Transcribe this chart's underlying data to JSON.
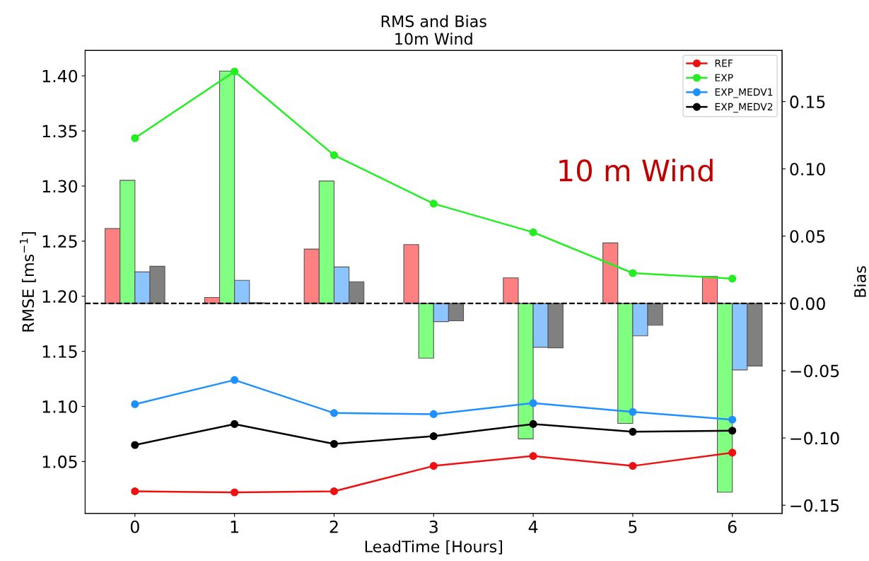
{
  "chart_data": {
    "type": "line",
    "title": "RMS and Bias\n10m Wind",
    "xlabel": "LeadTime [Hours]",
    "ylabel": "RMSE [ms$^{−1}$]",
    "y2label": "Bias",
    "categories": [
      "0",
      "1",
      "2",
      "3",
      "4",
      "5",
      "6"
    ],
    "ylim": [
      1.003,
      1.423
    ],
    "yticks": [
      1.05,
      {
        "value": 1.1,
        "label": "1.10"
      },
      1.15,
      {
        "value": 1.2,
        "label": "1.20"
      },
      1.25,
      {
        "value": 1.3,
        "label": "1.30"
      },
      1.35,
      {
        "value": 1.4,
        "label": "1.40"
      }
    ],
    "y2lim": [
      -0.156,
      0.188
    ],
    "y2ticks": [
      {
        "value": -0.15,
        "label": "−0.15"
      },
      {
        "value": -0.1,
        "label": "−0.10"
      },
      {
        "value": -0.05,
        "label": "−0.05"
      },
      {
        "value": 0,
        "label": "0.00"
      },
      0.05,
      {
        "value": 0.1,
        "label": "0.10"
      },
      0.15
    ],
    "series": [
      {
        "type": "bar",
        "axis": "y2",
        "color": "#ff8080",
        "values": [
          0.0556,
          0.0044,
          0.0404,
          0.0437,
          0.019,
          0.045,
          0.02
        ]
      },
      {
        "type": "bar",
        "axis": "y2",
        "color": "#80ff80",
        "values": [
          0.0915,
          0.1727,
          0.091,
          -0.0407,
          -0.1007,
          -0.0892,
          -0.1403
        ]
      },
      {
        "type": "bar",
        "axis": "y2",
        "color": "#8cc4ff",
        "values": [
          0.0234,
          0.0172,
          0.0271,
          -0.0135,
          -0.0326,
          -0.0241,
          -0.0494
        ]
      },
      {
        "type": "bar",
        "axis": "y2",
        "color": "#808080",
        "values": [
          0.0276,
          0.0005,
          0.0161,
          -0.0129,
          -0.033,
          -0.0162,
          -0.0465
        ]
      },
      {
        "name": "REF",
        "color": "#ee1111",
        "values": [
          1.023,
          1.022,
          1.023,
          1.046,
          1.055,
          1.046,
          1.058
        ]
      },
      {
        "name": "EXP",
        "color": "#22ee22",
        "values": [
          1.3435,
          1.404,
          1.328,
          1.284,
          1.258,
          1.221,
          1.216
        ]
      },
      {
        "name": "EXP_MEDV1",
        "color": "#1e90ff",
        "values": [
          1.102,
          1.124,
          1.094,
          1.093,
          1.103,
          1.095,
          1.088
        ]
      },
      {
        "name": "EXP_MEDV2",
        "color": "#000000",
        "values": [
          1.065,
          1.084,
          1.066,
          1.073,
          1.084,
          1.077,
          1.078
        ]
      }
    ],
    "ref_lines": [
      {
        "axis": "y2",
        "value": 0,
        "color": "#000000",
        "line_style": "dashed"
      }
    ],
    "annotations": [
      "10 m Wind"
    ],
    "marker": "circle",
    "line_style": "solid",
    "grid": false,
    "legend": "top right"
  }
}
